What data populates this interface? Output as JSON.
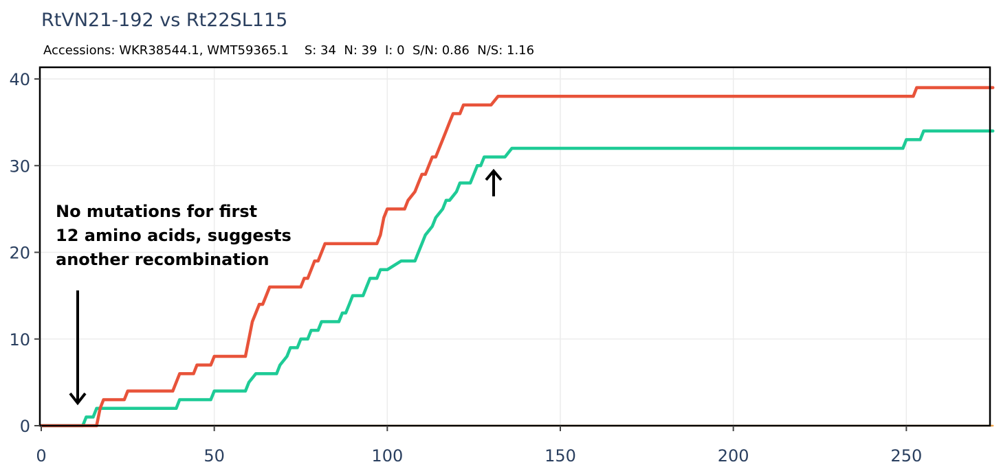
{
  "chart_data": {
    "type": "line",
    "title": "RtVN21-192 vs Rt22SL115",
    "subtitle": "Accessions: WKR38544.1, WMT59365.1    S: 34  N: 39  I: 0  S/N: 0.86  N/S: 1.16",
    "xlim": [
      0,
      275
    ],
    "ylim": [
      0,
      41
    ],
    "x_ticks": [
      0,
      50,
      100,
      150,
      200,
      250
    ],
    "y_ticks": [
      0,
      10,
      20,
      30,
      40
    ],
    "grid": true,
    "legend": "none",
    "annotation": {
      "lines": [
        "No mutations for first",
        "12 amino acids, suggests",
        "another recombination"
      ]
    },
    "series": [
      {
        "color": "#e8533a",
        "points": [
          [
            0,
            0
          ],
          [
            16,
            0
          ],
          [
            17,
            2
          ],
          [
            18,
            3
          ],
          [
            20,
            3
          ],
          [
            24,
            3
          ],
          [
            25,
            4
          ],
          [
            33,
            4
          ],
          [
            38,
            4
          ],
          [
            39,
            5
          ],
          [
            40,
            6
          ],
          [
            44,
            6
          ],
          [
            45,
            7
          ],
          [
            49,
            7
          ],
          [
            50,
            8
          ],
          [
            59,
            8
          ],
          [
            60,
            10
          ],
          [
            61,
            12
          ],
          [
            62,
            13
          ],
          [
            63,
            14
          ],
          [
            64,
            14
          ],
          [
            65,
            15
          ],
          [
            66,
            16
          ],
          [
            75,
            16
          ],
          [
            76,
            17
          ],
          [
            77,
            17
          ],
          [
            78,
            18
          ],
          [
            79,
            19
          ],
          [
            80,
            19
          ],
          [
            81,
            20
          ],
          [
            82,
            21
          ],
          [
            97,
            21
          ],
          [
            98,
            22
          ],
          [
            99,
            24
          ],
          [
            100,
            25
          ],
          [
            105,
            25
          ],
          [
            106,
            26
          ],
          [
            108,
            27
          ],
          [
            109,
            28
          ],
          [
            110,
            29
          ],
          [
            111,
            29
          ],
          [
            112,
            30
          ],
          [
            113,
            31
          ],
          [
            114,
            31
          ],
          [
            115,
            32
          ],
          [
            116,
            33
          ],
          [
            117,
            34
          ],
          [
            118,
            35
          ],
          [
            119,
            36
          ],
          [
            121,
            36
          ],
          [
            122,
            37
          ],
          [
            130,
            37
          ],
          [
            132,
            38
          ],
          [
            252,
            38
          ],
          [
            253,
            39
          ],
          [
            275,
            39
          ]
        ]
      },
      {
        "color": "#1ecb96",
        "points": [
          [
            0,
            0
          ],
          [
            12,
            0
          ],
          [
            13,
            1
          ],
          [
            15,
            1
          ],
          [
            16,
            2
          ],
          [
            18,
            2
          ],
          [
            20,
            2
          ],
          [
            39,
            2
          ],
          [
            40,
            3
          ],
          [
            49,
            3
          ],
          [
            50,
            4
          ],
          [
            59,
            4
          ],
          [
            60,
            5
          ],
          [
            62,
            6
          ],
          [
            68,
            6
          ],
          [
            69,
            7
          ],
          [
            71,
            8
          ],
          [
            72,
            9
          ],
          [
            74,
            9
          ],
          [
            75,
            10
          ],
          [
            77,
            10
          ],
          [
            78,
            11
          ],
          [
            80,
            11
          ],
          [
            81,
            12
          ],
          [
            86,
            12
          ],
          [
            87,
            13
          ],
          [
            88,
            13
          ],
          [
            89,
            14
          ],
          [
            90,
            15
          ],
          [
            93,
            15
          ],
          [
            94,
            16
          ],
          [
            95,
            17
          ],
          [
            97,
            17
          ],
          [
            98,
            18
          ],
          [
            100,
            18
          ],
          [
            104,
            19
          ],
          [
            108,
            19
          ],
          [
            109,
            20
          ],
          [
            110,
            21
          ],
          [
            111,
            22
          ],
          [
            113,
            23
          ],
          [
            114,
            24
          ],
          [
            116,
            25
          ],
          [
            117,
            26
          ],
          [
            118,
            26
          ],
          [
            120,
            27
          ],
          [
            121,
            28
          ],
          [
            124,
            28
          ],
          [
            125,
            29
          ],
          [
            126,
            30
          ],
          [
            127,
            30
          ],
          [
            128,
            31
          ],
          [
            134,
            31
          ],
          [
            136,
            32
          ],
          [
            249,
            32
          ],
          [
            250,
            33
          ],
          [
            254,
            33
          ],
          [
            255,
            34
          ],
          [
            275,
            34
          ]
        ]
      },
      {
        "color": "#f2a54a",
        "points": [
          [
            0,
            0
          ],
          [
            275,
            0
          ]
        ]
      }
    ]
  }
}
